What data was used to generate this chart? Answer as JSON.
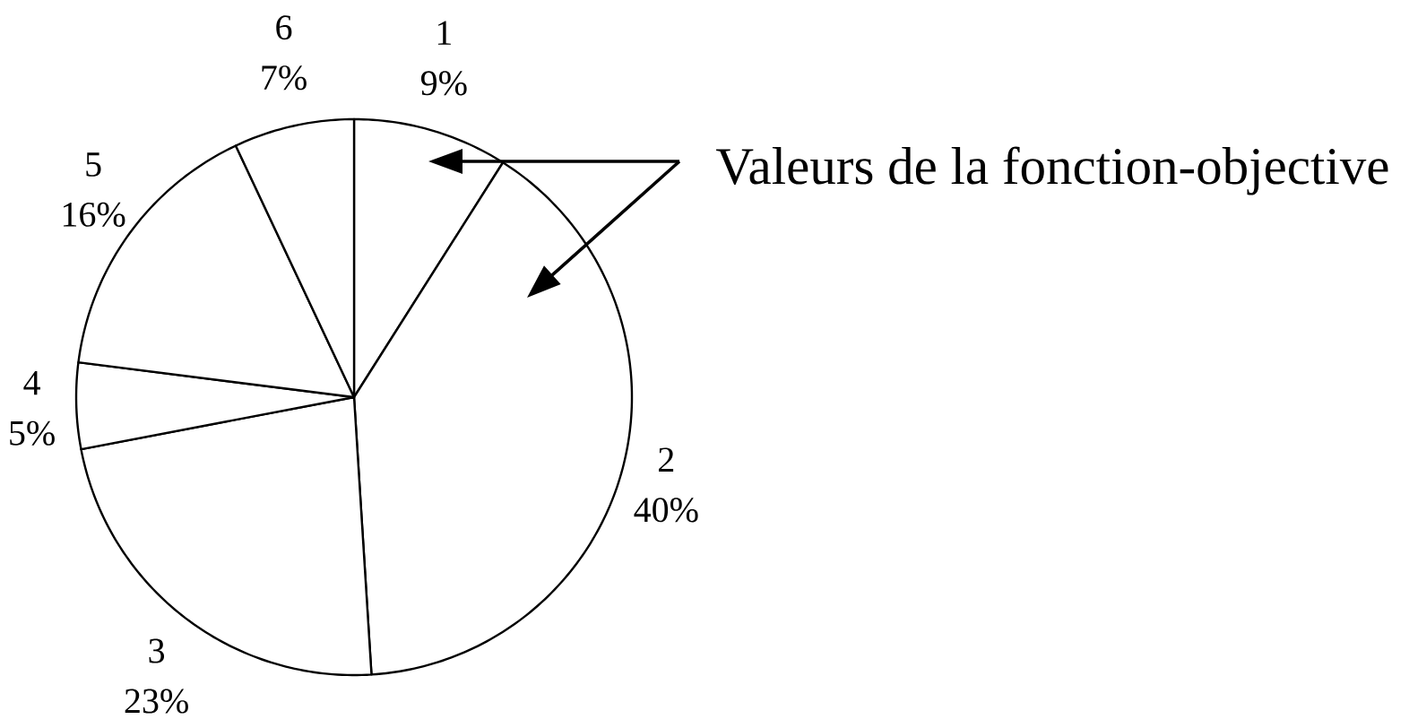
{
  "chart_data": {
    "type": "pie",
    "categories": [
      "1",
      "2",
      "3",
      "4",
      "5",
      "6"
    ],
    "values": [
      9,
      40,
      23,
      5,
      16,
      7
    ],
    "value_labels": [
      "9%",
      "40%",
      "23%",
      "5%",
      "16%",
      "7%"
    ],
    "colors": [
      "#ffffff",
      "#ffffff",
      "#ffffff",
      "#ffffff",
      "#ffffff",
      "#ffffff"
    ],
    "annotations": [
      "Valeurs de la fonction-objective"
    ]
  }
}
